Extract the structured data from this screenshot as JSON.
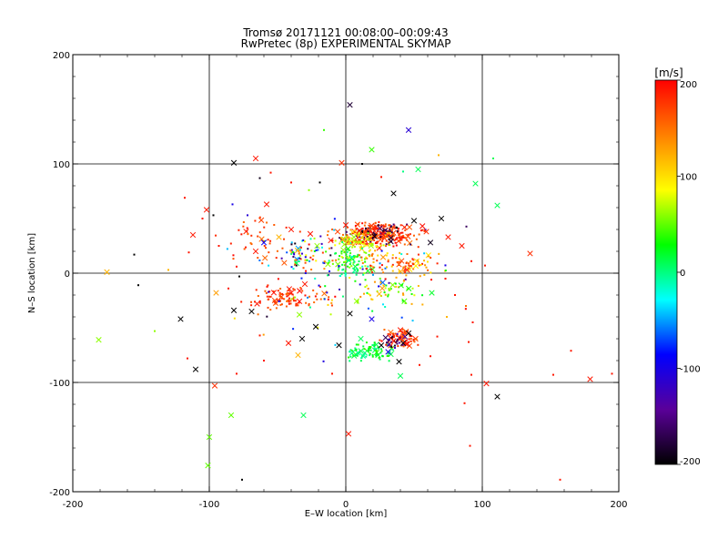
{
  "chart_data": {
    "type": "scatter",
    "title": "Tromsø 20171121 00:08:00–00:09:43",
    "subtitle": "RwPretec (8p) EXPERIMENTAL SKYMAP",
    "xlabel": "E–W location [km]",
    "ylabel": "N–S location [km]",
    "xlim": [
      -200,
      200
    ],
    "ylim": [
      -200,
      200
    ],
    "xticks": [
      "-200",
      "-100",
      "0",
      "100",
      "200"
    ],
    "yticks": [
      "-200",
      "-100",
      "0",
      "100",
      "200"
    ],
    "grid": true,
    "colorbar": {
      "label": "[m/s]",
      "range": [
        -200,
        200
      ],
      "ticks": [
        "-200",
        "-100",
        "0",
        "100",
        "200"
      ],
      "colormap": [
        "#000000",
        "#5a0099",
        "#0000ff",
        "#00ffff",
        "#00ff00",
        "#ffff00",
        "#ff8000",
        "#ff0000"
      ]
    },
    "legend_markers": {
      "x": "cross",
      "dot": "small dot"
    },
    "points": [
      {
        "x": 3,
        "y": 154,
        "v": -180,
        "m": "x"
      },
      {
        "x": 46,
        "y": 131,
        "v": -110,
        "m": "x"
      },
      {
        "x": 19,
        "y": 113,
        "v": 40,
        "m": "x"
      },
      {
        "x": -82,
        "y": 101,
        "v": -200,
        "m": "x"
      },
      {
        "x": -66,
        "y": 105,
        "v": 190,
        "m": "x"
      },
      {
        "x": -3,
        "y": 101,
        "v": 180,
        "m": "x"
      },
      {
        "x": 53,
        "y": 95,
        "v": 10,
        "m": "x"
      },
      {
        "x": 95,
        "y": 82,
        "v": 10,
        "m": "x"
      },
      {
        "x": 111,
        "y": 62,
        "v": 10,
        "m": "x"
      },
      {
        "x": 135,
        "y": 18,
        "v": 180,
        "m": "x"
      },
      {
        "x": -175,
        "y": 1,
        "v": 120,
        "m": "x"
      },
      {
        "x": -181,
        "y": -61,
        "v": 60,
        "m": "x"
      },
      {
        "x": -121,
        "y": -42,
        "v": -200,
        "m": "x"
      },
      {
        "x": -110,
        "y": -88,
        "v": -200,
        "m": "x"
      },
      {
        "x": -96,
        "y": -103,
        "v": 180,
        "m": "x"
      },
      {
        "x": -84,
        "y": -130,
        "v": 50,
        "m": "x"
      },
      {
        "x": -100,
        "y": -150,
        "v": 50,
        "m": "x"
      },
      {
        "x": -101,
        "y": -176,
        "v": 50,
        "m": "x"
      },
      {
        "x": -31,
        "y": -130,
        "v": 10,
        "m": "x"
      },
      {
        "x": 2,
        "y": -147,
        "v": 190,
        "m": "x"
      },
      {
        "x": 111,
        "y": -113,
        "v": -200,
        "m": "x"
      },
      {
        "x": 179,
        "y": -97,
        "v": 190,
        "m": "x"
      },
      {
        "x": -82,
        "y": -34,
        "v": -200,
        "m": "x"
      },
      {
        "x": -95,
        "y": -18,
        "v": 130,
        "m": "x"
      },
      {
        "x": -112,
        "y": 35,
        "v": 190,
        "m": "x"
      },
      {
        "x": -102,
        "y": 58,
        "v": 190,
        "m": "x"
      },
      {
        "x": -58,
        "y": 63,
        "v": 190,
        "m": "x"
      },
      {
        "x": 35,
        "y": 73,
        "v": -200,
        "m": "x"
      },
      {
        "x": 10,
        "y": 39,
        "v": 190,
        "m": "x"
      },
      {
        "x": 18,
        "y": 42,
        "v": 170,
        "m": "x"
      },
      {
        "x": 27,
        "y": 36,
        "v": 190,
        "m": "x"
      },
      {
        "x": 33,
        "y": 29,
        "v": -180,
        "m": "x"
      },
      {
        "x": 43,
        "y": 42,
        "v": 190,
        "m": "x"
      },
      {
        "x": 50,
        "y": 48,
        "v": -200,
        "m": "x"
      },
      {
        "x": 59,
        "y": 38,
        "v": 180,
        "m": "x"
      },
      {
        "x": 62,
        "y": 28,
        "v": -190,
        "m": "x"
      },
      {
        "x": 70,
        "y": 50,
        "v": -200,
        "m": "x"
      },
      {
        "x": 75,
        "y": 33,
        "v": 190,
        "m": "x"
      },
      {
        "x": 0,
        "y": 44,
        "v": 190,
        "m": "x"
      },
      {
        "x": -6,
        "y": 38,
        "v": 170,
        "m": "x"
      },
      {
        "x": -11,
        "y": 30,
        "v": 190,
        "m": "x"
      },
      {
        "x": 6,
        "y": 33,
        "v": 60,
        "m": "x"
      },
      {
        "x": -21,
        "y": 25,
        "v": 60,
        "m": "x"
      },
      {
        "x": -26,
        "y": 36,
        "v": 190,
        "m": "x"
      },
      {
        "x": -40,
        "y": 40,
        "v": 190,
        "m": "x"
      },
      {
        "x": -49,
        "y": 33,
        "v": 120,
        "m": "x"
      },
      {
        "x": -60,
        "y": 28,
        "v": -90,
        "m": "x"
      },
      {
        "x": -66,
        "y": 20,
        "v": 190,
        "m": "x"
      },
      {
        "x": -30,
        "y": -10,
        "v": 190,
        "m": "x"
      },
      {
        "x": -40,
        "y": -18,
        "v": 190,
        "m": "x"
      },
      {
        "x": -52,
        "y": -25,
        "v": 170,
        "m": "x"
      },
      {
        "x": -65,
        "y": -28,
        "v": 190,
        "m": "x"
      },
      {
        "x": -69,
        "y": -35,
        "v": -200,
        "m": "x"
      },
      {
        "x": -34,
        "y": -38,
        "v": 60,
        "m": "x"
      },
      {
        "x": -22,
        "y": -49,
        "v": -200,
        "m": "x"
      },
      {
        "x": 3,
        "y": -37,
        "v": -200,
        "m": "x"
      },
      {
        "x": 26,
        "y": -66,
        "v": -200,
        "m": "x"
      },
      {
        "x": 31,
        "y": -72,
        "v": -100,
        "m": "x"
      },
      {
        "x": 35,
        "y": -62,
        "v": 190,
        "m": "x"
      },
      {
        "x": 40,
        "y": -52,
        "v": 190,
        "m": "x"
      },
      {
        "x": 46,
        "y": -55,
        "v": -200,
        "m": "x"
      },
      {
        "x": 42,
        "y": -64,
        "v": -190,
        "m": "x"
      },
      {
        "x": 39,
        "y": -81,
        "v": -200,
        "m": "x"
      },
      {
        "x": 14,
        "y": -73,
        "v": 0,
        "m": "x"
      },
      {
        "x": 11,
        "y": -60,
        "v": 10,
        "m": "x"
      },
      {
        "x": -5,
        "y": -66,
        "v": -200,
        "m": "x"
      },
      {
        "x": -32,
        "y": -60,
        "v": -200,
        "m": "x"
      },
      {
        "x": -35,
        "y": -75,
        "v": 120,
        "m": "x"
      },
      {
        "x": -42,
        "y": -64,
        "v": 190,
        "m": "x"
      },
      {
        "x": 19,
        "y": -42,
        "v": -100,
        "m": "x"
      },
      {
        "x": 45,
        "y": 3,
        "v": 190,
        "m": "x"
      },
      {
        "x": 63,
        "y": -18,
        "v": 20,
        "m": "x"
      },
      {
        "x": 85,
        "y": 25,
        "v": 190,
        "m": "x"
      },
      {
        "x": 40,
        "y": -94,
        "v": 10,
        "m": "x"
      },
      {
        "x": 103,
        "y": -101,
        "v": 190,
        "m": "x"
      },
      {
        "x": -155,
        "y": 17,
        "v": -200,
        "m": "."
      },
      {
        "x": -152,
        "y": -11,
        "v": -200,
        "m": "."
      },
      {
        "x": -118,
        "y": 69,
        "v": 190,
        "m": "."
      },
      {
        "x": -105,
        "y": 50,
        "v": 190,
        "m": "."
      },
      {
        "x": -97,
        "y": 53,
        "v": -200,
        "m": "."
      },
      {
        "x": -72,
        "y": 53,
        "v": -110,
        "m": "."
      },
      {
        "x": -83,
        "y": 63,
        "v": -100,
        "m": "."
      },
      {
        "x": -63,
        "y": 87,
        "v": -190,
        "m": "."
      },
      {
        "x": -55,
        "y": 92,
        "v": 190,
        "m": "."
      },
      {
        "x": -40,
        "y": 83,
        "v": 190,
        "m": "."
      },
      {
        "x": -27,
        "y": 76,
        "v": 60,
        "m": "."
      },
      {
        "x": -19,
        "y": 83,
        "v": -200,
        "m": "."
      },
      {
        "x": -16,
        "y": 131,
        "v": 40,
        "m": "."
      },
      {
        "x": 12,
        "y": 100,
        "v": -200,
        "m": "."
      },
      {
        "x": 26,
        "y": 88,
        "v": 190,
        "m": "."
      },
      {
        "x": 42,
        "y": 93,
        "v": 0,
        "m": "."
      },
      {
        "x": 68,
        "y": 108,
        "v": 120,
        "m": "."
      },
      {
        "x": 108,
        "y": 105,
        "v": 10,
        "m": "."
      },
      {
        "x": 92,
        "y": 11,
        "v": 190,
        "m": "."
      },
      {
        "x": 102,
        "y": 7,
        "v": 190,
        "m": "."
      },
      {
        "x": 88,
        "y": -30,
        "v": 150,
        "m": "."
      },
      {
        "x": 93,
        "y": -45,
        "v": 190,
        "m": "."
      },
      {
        "x": 92,
        "y": -93,
        "v": 190,
        "m": "."
      },
      {
        "x": 87,
        "y": -119,
        "v": 190,
        "m": "."
      },
      {
        "x": 91,
        "y": -158,
        "v": 190,
        "m": "."
      },
      {
        "x": 152,
        "y": -93,
        "v": 190,
        "m": "."
      },
      {
        "x": 165,
        "y": -71,
        "v": 190,
        "m": "."
      },
      {
        "x": 195,
        "y": -92,
        "v": 190,
        "m": "."
      },
      {
        "x": 157,
        "y": -189,
        "v": 190,
        "m": "."
      },
      {
        "x": -76,
        "y": -189,
        "v": -200,
        "m": "."
      },
      {
        "x": -86,
        "y": -14,
        "v": 190,
        "m": "."
      },
      {
        "x": -78,
        "y": -3,
        "v": -200,
        "m": "."
      },
      {
        "x": -80,
        "y": 6,
        "v": 190,
        "m": "."
      },
      {
        "x": -93,
        "y": 25,
        "v": 190,
        "m": "."
      },
      {
        "x": -115,
        "y": 19,
        "v": 190,
        "m": "."
      },
      {
        "x": -130,
        "y": 3,
        "v": 120,
        "m": "."
      },
      {
        "x": -140,
        "y": -53,
        "v": 60,
        "m": "."
      },
      {
        "x": -116,
        "y": -78,
        "v": 190,
        "m": "."
      },
      {
        "x": -80,
        "y": -92,
        "v": 190,
        "m": "."
      },
      {
        "x": -60,
        "y": -80,
        "v": 190,
        "m": "."
      },
      {
        "x": -63,
        "y": -57,
        "v": 190,
        "m": "."
      },
      {
        "x": -10,
        "y": -92,
        "v": 190,
        "m": "."
      },
      {
        "x": 54,
        "y": -84,
        "v": 190,
        "m": "."
      },
      {
        "x": 62,
        "y": -76,
        "v": 190,
        "m": "."
      },
      {
        "x": 67,
        "y": -58,
        "v": 190,
        "m": "."
      },
      {
        "x": 74,
        "y": -40,
        "v": 120,
        "m": "."
      },
      {
        "x": 80,
        "y": -20,
        "v": 190,
        "m": "."
      },
      {
        "x": 73,
        "y": -5,
        "v": 190,
        "m": "."
      },
      {
        "x": 90,
        "y": -63,
        "v": 190,
        "m": "."
      }
    ],
    "clusters": [
      {
        "cx": 25,
        "cy": 35,
        "sx": 22,
        "sy": 9,
        "n": 230,
        "vmin": 150,
        "vmax": 200
      },
      {
        "cx": 18,
        "cy": 36,
        "sx": 18,
        "sy": 9,
        "n": 60,
        "vmin": -200,
        "vmax": -150
      },
      {
        "cx": 10,
        "cy": 30,
        "sx": 16,
        "sy": 7,
        "n": 70,
        "vmin": 60,
        "vmax": 130
      },
      {
        "cx": 5,
        "cy": 12,
        "sx": 12,
        "sy": 12,
        "n": 90,
        "vmin": -20,
        "vmax": 70
      },
      {
        "cx": 40,
        "cy": 8,
        "sx": 25,
        "sy": 9,
        "n": 90,
        "vmin": 90,
        "vmax": 200
      },
      {
        "cx": 30,
        "cy": -15,
        "sx": 20,
        "sy": 10,
        "n": 55,
        "vmin": 20,
        "vmax": 140
      },
      {
        "cx": -40,
        "cy": -22,
        "sx": 22,
        "sy": 8,
        "n": 95,
        "vmin": 150,
        "vmax": 200
      },
      {
        "cx": -30,
        "cy": 15,
        "sx": 20,
        "sy": 14,
        "n": 70,
        "vmin": -200,
        "vmax": 200
      },
      {
        "cx": -65,
        "cy": 30,
        "sx": 20,
        "sy": 16,
        "n": 40,
        "vmin": 150,
        "vmax": 200
      },
      {
        "cx": 18,
        "cy": -72,
        "sx": 14,
        "sy": 8,
        "n": 80,
        "vmin": -10,
        "vmax": 40
      },
      {
        "cx": 40,
        "cy": -60,
        "sx": 10,
        "sy": 7,
        "n": 70,
        "vmin": 150,
        "vmax": 200
      },
      {
        "cx": 36,
        "cy": -62,
        "sx": 8,
        "sy": 6,
        "n": 25,
        "vmin": -200,
        "vmax": -120
      },
      {
        "cx": 0,
        "cy": 0,
        "sx": 60,
        "sy": 50,
        "n": 90,
        "vmin": -200,
        "vmax": 200
      }
    ]
  }
}
